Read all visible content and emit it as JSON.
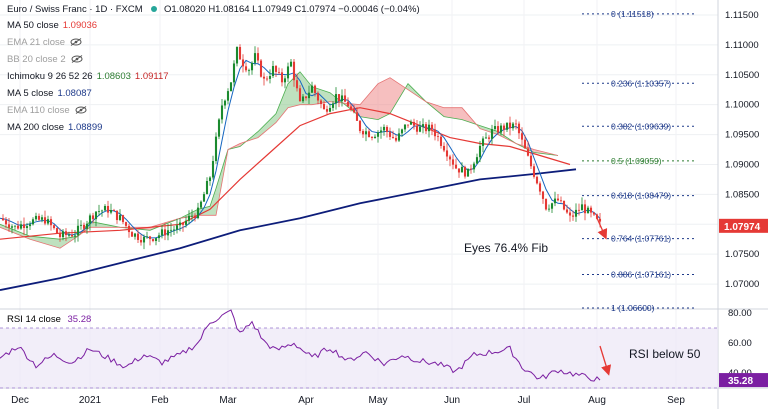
{
  "header": {
    "symbol": "Euro / Swiss Franc · 1D · FXCM",
    "ohlc": "O1.08020 H1.08164 L1.07949 C1.07974 −0.00046 (−0.04%)"
  },
  "indicators": [
    {
      "label": "MA 50 close",
      "value": "1.09036",
      "color": "#e53935",
      "hidden": false
    },
    {
      "label": "EMA 21 close",
      "value": "",
      "color": "#9e9e9e",
      "hidden": true
    },
    {
      "label": "BB 20 close 2",
      "value": "",
      "color": "#9e9e9e",
      "hidden": true
    },
    {
      "label": "Ichimoku 9 26 52 26",
      "value": "1.08603",
      "value2": "1.09117",
      "color": "#2e7d32",
      "color2": "#c62828",
      "hidden": false
    },
    {
      "label": "MA 5 close",
      "value": "1.08087",
      "color": "#1e3a8a",
      "hidden": false
    },
    {
      "label": "EMA 110 close",
      "value": "",
      "color": "#9e9e9e",
      "hidden": true
    },
    {
      "label": "MA 200 close",
      "value": "1.08899",
      "color": "#1e3a8a",
      "hidden": false
    }
  ],
  "rsi_label": "RSI 14 close",
  "rsi_value": "35.28",
  "annotations": {
    "fib_note": "Eyes 76.4% Fib",
    "rsi_note": "RSI below 50"
  },
  "current_price": "1.07974",
  "colors": {
    "up": "#1b8a2f",
    "down": "#e53935",
    "ma200": "#0d1d7a",
    "ma50": "#e53935",
    "ma5": "#1565c0",
    "cloud_bull": "#8bc98b",
    "cloud_bear": "#ef8a8a",
    "rsi": "#7b1fa2",
    "price_tag": "#e53935"
  },
  "chart_data": [
    {
      "type": "candlestick",
      "x_ticks": [
        "Dec",
        "2021",
        "Feb",
        "Mar",
        "Apr",
        "May",
        "Jun",
        "Jul",
        "Aug",
        "Sep"
      ],
      "y_ticks": [
        1.07,
        1.075,
        1.08,
        1.085,
        1.09,
        1.095,
        1.1,
        1.105,
        1.11,
        1.115
      ],
      "y_tick_labels": [
        "1.07000",
        "1.07500",
        "1.08000",
        "1.08500",
        "1.09000",
        "1.09500",
        "1.10000",
        "1.10500",
        "1.11000",
        "1.11500"
      ],
      "ylim": [
        1.066,
        1.1175
      ],
      "fib_levels": [
        {
          "label": "0",
          "price": 1.11518,
          "text": "(1.11518)",
          "color": "#1e3a8a"
        },
        {
          "label": "0.236",
          "price": 1.10357,
          "text": "(1.10357)",
          "color": "#1e3a8a"
        },
        {
          "label": "0.382",
          "price": 1.09639,
          "text": "(1.09639)",
          "color": "#1e3a8a"
        },
        {
          "label": "0.5",
          "price": 1.09059,
          "text": "(1.09059)",
          "color": "#2e7d32"
        },
        {
          "label": "0.618",
          "price": 1.08479,
          "text": "(1.08479)",
          "color": "#1e3a8a"
        },
        {
          "label": "0.764",
          "price": 1.07761,
          "text": "(1.07761)",
          "color": "#1e3a8a"
        },
        {
          "label": "0.886",
          "price": 1.07161,
          "text": "(1.07161)",
          "color": "#1e3a8a"
        },
        {
          "label": "1",
          "price": 1.066,
          "text": "(1.06600)",
          "color": "#1e3a8a"
        }
      ],
      "close_path": [
        [
          0,
          1.081
        ],
        [
          5,
          1.0795
        ],
        [
          10,
          1.0805
        ],
        [
          15,
          1.0808
        ],
        [
          20,
          1.078
        ],
        [
          25,
          1.0785
        ],
        [
          28,
          1.08
        ],
        [
          32,
          1.0822
        ],
        [
          36,
          1.0825
        ],
        [
          40,
          1.081
        ],
        [
          44,
          1.0785
        ],
        [
          48,
          1.0775
        ],
        [
          52,
          1.078
        ],
        [
          56,
          1.079
        ],
        [
          60,
          1.0795
        ],
        [
          64,
          1.0815
        ],
        [
          66,
          1.082
        ],
        [
          70,
          1.088
        ],
        [
          72,
          1.094
        ],
        [
          74,
          1.1
        ],
        [
          77,
          1.104
        ],
        [
          79,
          1.109
        ],
        [
          81,
          1.107
        ],
        [
          83,
          1.106
        ],
        [
          85,
          1.108
        ],
        [
          88,
          1.104
        ],
        [
          91,
          1.106
        ],
        [
          94,
          1.104
        ],
        [
          97,
          1.107
        ],
        [
          100,
          1.1
        ],
        [
          104,
          1.103
        ],
        [
          108,
          1.099
        ],
        [
          112,
          1.1015
        ],
        [
          116,
          1.1
        ],
        [
          120,
          1.096
        ],
        [
          124,
          1.095
        ],
        [
          128,
          1.096
        ],
        [
          132,
          1.094
        ],
        [
          136,
          1.097
        ],
        [
          140,
          1.096
        ],
        [
          144,
          1.096
        ],
        [
          148,
          1.093
        ],
        [
          152,
          1.0895
        ],
        [
          156,
          1.0885
        ],
        [
          160,
          1.093
        ],
        [
          164,
          1.0955
        ],
        [
          168,
          1.0962
        ],
        [
          172,
          1.0965
        ],
        [
          176,
          1.091
        ],
        [
          180,
          1.086
        ],
        [
          182,
          1.083
        ],
        [
          186,
          1.084
        ],
        [
          190,
          1.081
        ],
        [
          194,
          1.083
        ],
        [
          197,
          1.0815
        ],
        [
          200,
          1.0799
        ]
      ],
      "ma50": [
        [
          0,
          1.0775
        ],
        [
          20,
          1.0785
        ],
        [
          40,
          1.079
        ],
        [
          60,
          1.08
        ],
        [
          70,
          1.0825
        ],
        [
          80,
          1.0875
        ],
        [
          90,
          1.092
        ],
        [
          100,
          1.0965
        ],
        [
          110,
          1.0985
        ],
        [
          120,
          1.0995
        ],
        [
          130,
          1.0985
        ],
        [
          140,
          1.0965
        ],
        [
          150,
          1.0945
        ],
        [
          160,
          1.0935
        ],
        [
          170,
          1.093
        ],
        [
          180,
          1.0915
        ],
        [
          190,
          1.09
        ]
      ],
      "ma200": [
        [
          0,
          1.069
        ],
        [
          20,
          1.071
        ],
        [
          40,
          1.0735
        ],
        [
          60,
          1.076
        ],
        [
          80,
          1.079
        ],
        [
          100,
          1.081
        ],
        [
          120,
          1.0835
        ],
        [
          140,
          1.0855
        ],
        [
          160,
          1.0875
        ],
        [
          180,
          1.0885
        ],
        [
          192,
          1.0892
        ]
      ],
      "cloud_a": [
        [
          0,
          1.08
        ],
        [
          10,
          1.078
        ],
        [
          20,
          1.0775
        ],
        [
          26,
          1.078
        ],
        [
          30,
          1.0805
        ],
        [
          40,
          1.0795
        ],
        [
          50,
          1.079
        ],
        [
          60,
          1.081
        ],
        [
          66,
          1.0825
        ],
        [
          70,
          1.083
        ],
        [
          72,
          1.086
        ],
        [
          76,
          1.0925
        ],
        [
          80,
          1.093
        ],
        [
          86,
          1.0955
        ],
        [
          92,
          1.0985
        ],
        [
          96,
          1.1035
        ],
        [
          100,
          1.1055
        ],
        [
          104,
          1.103
        ],
        [
          110,
          1.102
        ],
        [
          120,
          1.098
        ],
        [
          126,
          1.0975
        ],
        [
          130,
          1.0985
        ],
        [
          136,
          1.1035
        ],
        [
          142,
          1.1005
        ],
        [
          148,
          1.098
        ],
        [
          154,
          1.0975
        ],
        [
          160,
          1.0965
        ],
        [
          166,
          1.0955
        ],
        [
          172,
          1.0935
        ],
        [
          178,
          1.092
        ],
        [
          186,
          1.0915
        ]
      ],
      "cloud_b": [
        [
          0,
          1.0795
        ],
        [
          10,
          1.0775
        ],
        [
          20,
          1.076
        ],
        [
          26,
          1.078
        ],
        [
          30,
          1.0795
        ],
        [
          40,
          1.0795
        ],
        [
          50,
          1.0795
        ],
        [
          60,
          1.081
        ],
        [
          66,
          1.0815
        ],
        [
          70,
          1.0815
        ],
        [
          72,
          1.0815
        ],
        [
          76,
          1.0925
        ],
        [
          80,
          1.0935
        ],
        [
          86,
          1.0945
        ],
        [
          92,
          1.097
        ],
        [
          96,
          1.0995
        ],
        [
          100,
          1.1
        ],
        [
          104,
          1.1
        ],
        [
          110,
          1.1005
        ],
        [
          120,
          1.1
        ],
        [
          126,
          1.1035
        ],
        [
          130,
          1.1045
        ],
        [
          136,
          1.1025
        ],
        [
          142,
          1.1005
        ],
        [
          148,
          1.0995
        ],
        [
          154,
          1.0995
        ],
        [
          160,
          1.096
        ],
        [
          166,
          1.095
        ],
        [
          172,
          1.0935
        ],
        [
          178,
          1.0925
        ],
        [
          186,
          1.0915
        ]
      ]
    },
    {
      "type": "line",
      "name": "RSI 14 close",
      "y_ticks": [
        40,
        60,
        80
      ],
      "y_tick_labels": [
        "40.00",
        "60.00",
        "80.00"
      ],
      "ylim": [
        30,
        82
      ],
      "band": [
        30,
        70
      ],
      "values": [
        [
          0,
          50
        ],
        [
          6,
          58
        ],
        [
          12,
          45
        ],
        [
          18,
          52
        ],
        [
          24,
          47
        ],
        [
          30,
          56
        ],
        [
          36,
          50
        ],
        [
          42,
          44
        ],
        [
          48,
          52
        ],
        [
          54,
          47
        ],
        [
          60,
          52
        ],
        [
          66,
          60
        ],
        [
          70,
          74
        ],
        [
          74,
          78
        ],
        [
          77,
          81
        ],
        [
          80,
          66
        ],
        [
          84,
          74
        ],
        [
          88,
          61
        ],
        [
          92,
          55
        ],
        [
          98,
          60
        ],
        [
          104,
          50
        ],
        [
          110,
          57
        ],
        [
          116,
          48
        ],
        [
          122,
          54
        ],
        [
          128,
          46
        ],
        [
          134,
          52
        ],
        [
          140,
          48
        ],
        [
          146,
          46
        ],
        [
          152,
          41
        ],
        [
          158,
          52
        ],
        [
          164,
          54
        ],
        [
          170,
          56
        ],
        [
          174,
          44
        ],
        [
          180,
          36
        ],
        [
          186,
          42
        ],
        [
          194,
          38
        ],
        [
          200,
          35.28
        ]
      ]
    }
  ]
}
